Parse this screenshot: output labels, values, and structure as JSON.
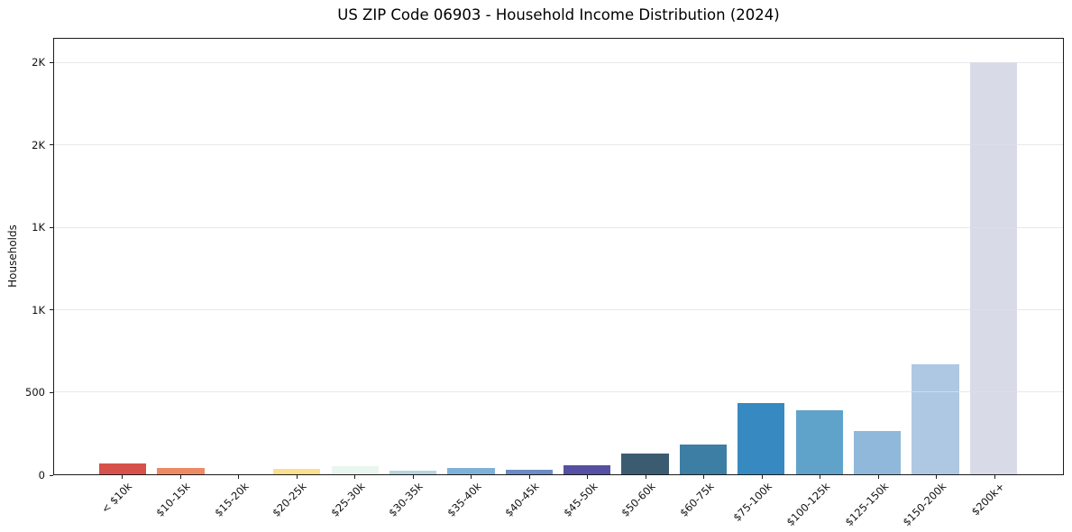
{
  "title": "US ZIP Code 06903 - Household Income Distribution (2024)",
  "y_axis": {
    "label": "Households",
    "tick_values": [
      0,
      500,
      1000,
      1500,
      2000,
      2500
    ],
    "tick_labels": [
      "0",
      "500",
      "1K",
      "1K",
      "2K",
      "2K"
    ]
  },
  "chart_data": {
    "type": "bar",
    "title": "US ZIP Code 06903 - Household Income Distribution (2024)",
    "xlabel": "",
    "ylabel": "Households",
    "categories": [
      "< $10k",
      "$10-15k",
      "$15-20k",
      "$20-25k",
      "$25-30k",
      "$30-35k",
      "$35-40k",
      "$40-45k",
      "$45-50k",
      "$50-60k",
      "$60-75k",
      "$75-100k",
      "$100-125k",
      "$125-150k",
      "$150-200k",
      "$200k+"
    ],
    "values": [
      65,
      40,
      0,
      35,
      50,
      20,
      40,
      25,
      55,
      125,
      180,
      435,
      390,
      265,
      670,
      2510
    ],
    "bar_colors": [
      "#d6514a",
      "#ee8a63",
      "#f8c16c",
      "#fbdf90",
      "#e9f6ef",
      "#b7d5de",
      "#7fb1d8",
      "#6d8cc3",
      "#5550a2",
      "#3b5c70",
      "#3c7ea4",
      "#3789c1",
      "#5fa3cb",
      "#90b8da",
      "#aec8e4",
      "#d9dae7"
    ],
    "ylim": [
      0,
      2650
    ],
    "ytick_values": [
      0,
      500,
      1000,
      1500,
      2000,
      2500
    ],
    "ytick_labels": [
      "0",
      "500",
      "1K",
      "1K",
      "2K",
      "2K"
    ],
    "grid": true,
    "legend": false
  },
  "colors": {
    "background": "#ffffff",
    "spine": "#1c1c1c",
    "grid": "#e9e9ef",
    "text": "#111111"
  }
}
